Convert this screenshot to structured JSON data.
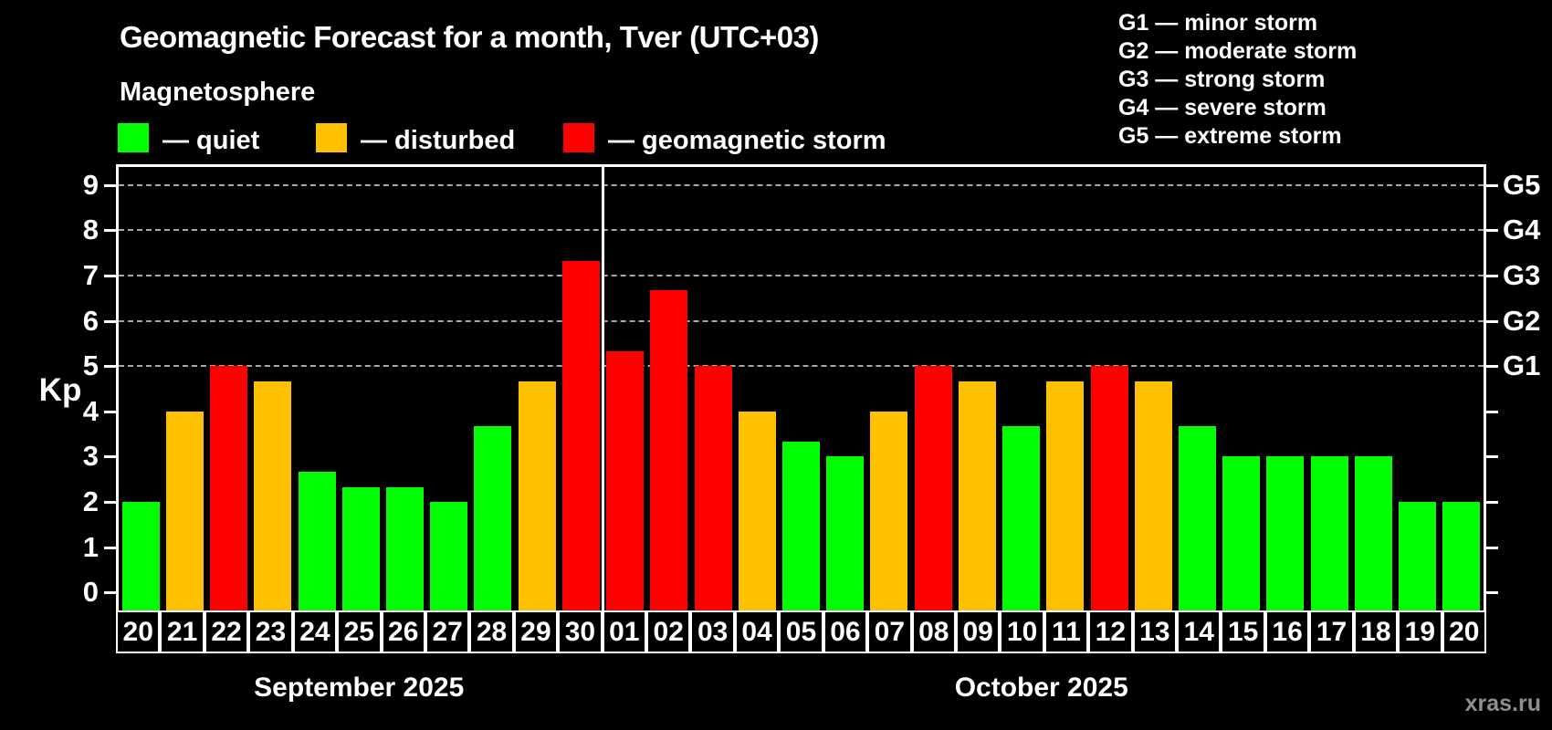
{
  "page": {
    "title": "Geomagnetic Forecast for a month, Tver (UTC+03)",
    "subtitle": "Magnetosphere",
    "watermark": "xras.ru"
  },
  "legend": {
    "items": [
      {
        "label": "— quiet",
        "status": "quiet"
      },
      {
        "label": "— disturbed",
        "status": "disturbed"
      },
      {
        "label": "— geomagnetic storm",
        "status": "storm"
      }
    ]
  },
  "g_legend": {
    "items": [
      "G1 — minor storm",
      "G2 — moderate storm",
      "G3 — strong storm",
      "G4 — severe storm",
      "G5 — extreme storm"
    ]
  },
  "colors": {
    "background": "#000000",
    "axis": "#ffffff",
    "grid": "#a8a8a8",
    "watermark": "#8f8f8f"
  },
  "chart_data": {
    "type": "bar",
    "title": "Geomagnetic Forecast for a month, Tver (UTC+03)",
    "ylabel": "Kp",
    "ylim": [
      -0.4,
      9.4
    ],
    "yticks": [
      0,
      1,
      2,
      3,
      4,
      5,
      6,
      7,
      8,
      9
    ],
    "gridlines_at": [
      5,
      6,
      7,
      8,
      9
    ],
    "grid_style": "dashed horizontal lines only at Kp 5-9",
    "legend_position": "top-left",
    "right_axis": [
      {
        "label": "G1",
        "kp": 5
      },
      {
        "label": "G2",
        "kp": 6
      },
      {
        "label": "G3",
        "kp": 7
      },
      {
        "label": "G4",
        "kp": 8
      },
      {
        "label": "G5",
        "kp": 9
      }
    ],
    "months": [
      {
        "label": "September 2025",
        "num_days": 11
      },
      {
        "label": "October 2025",
        "num_days": 20
      }
    ],
    "categories": [
      "20",
      "21",
      "22",
      "23",
      "24",
      "25",
      "26",
      "27",
      "28",
      "29",
      "30",
      "01",
      "02",
      "03",
      "04",
      "05",
      "06",
      "07",
      "08",
      "09",
      "10",
      "11",
      "12",
      "13",
      "14",
      "15",
      "16",
      "17",
      "18",
      "19",
      "20"
    ],
    "values": [
      2,
      4,
      5,
      4.67,
      2.67,
      2.33,
      2.33,
      2,
      3.67,
      4.67,
      7.33,
      5.33,
      6.67,
      5,
      4,
      3.33,
      3,
      4,
      5,
      4.67,
      3.67,
      4.67,
      5,
      4.67,
      3.67,
      3,
      3,
      3,
      3,
      2,
      2
    ],
    "statuses": [
      "quiet",
      "disturbed",
      "storm",
      "disturbed",
      "quiet",
      "quiet",
      "quiet",
      "quiet",
      "quiet",
      "disturbed",
      "storm",
      "storm",
      "storm",
      "storm",
      "disturbed",
      "quiet",
      "quiet",
      "disturbed",
      "storm",
      "disturbed",
      "quiet",
      "disturbed",
      "storm",
      "disturbed",
      "quiet",
      "quiet",
      "quiet",
      "quiet",
      "quiet",
      "quiet",
      "quiet"
    ],
    "status_colors": {
      "quiet": "#00ff00",
      "disturbed": "#ffc000",
      "storm": "#ff0000"
    }
  }
}
